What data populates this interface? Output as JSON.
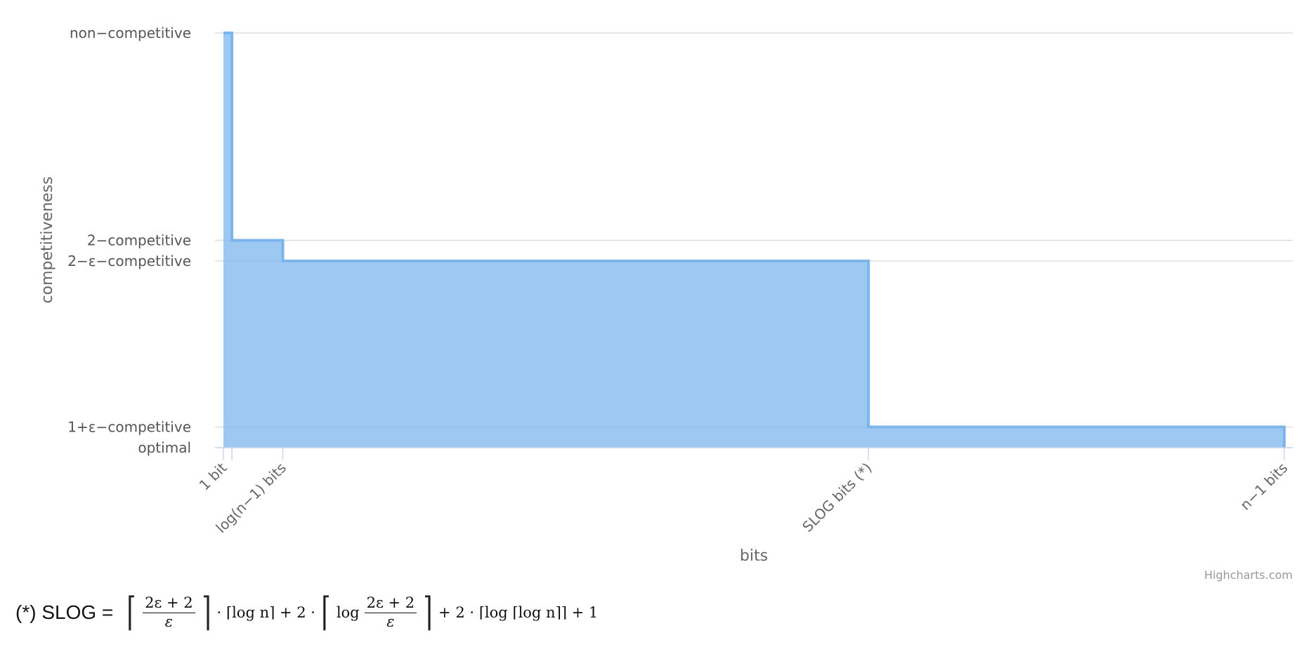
{
  "chart_data": {
    "type": "area",
    "step": true,
    "xlabel": "bits",
    "ylabel": "competitiveness",
    "x_categories": [
      "1 bit",
      "log(n−1) bits",
      "SLOG bits (*)",
      "n−1 bits"
    ],
    "y_categories": [
      "optimal",
      "1+ε−competitive",
      "2−ε−competitive",
      "2−competitive",
      "non−competitive"
    ],
    "y_levels": [
      0,
      1,
      9,
      10,
      20
    ],
    "x_positions": [
      0,
      1,
      7,
      76,
      125
    ],
    "series": [
      {
        "x": [
          0,
          1,
          7,
          76,
          125
        ],
        "y": [
          20,
          10,
          9,
          1,
          1
        ],
        "color": "#7cb5ec"
      }
    ],
    "ylim": [
      0,
      20
    ],
    "xlim": [
      0,
      126
    ],
    "grid": true
  },
  "credits": "Highcharts.com",
  "footnote": {
    "label": "(*) SLOG =",
    "formula": {
      "frac1_num": "2ε + 2",
      "frac1_den": "ε",
      "mid1": "· ⌈log n⌉ + 2 ·",
      "log_word": "log",
      "frac2_num": "2ε + 2",
      "frac2_den": "ε",
      "tail": "+ 2 · ⌈log ⌈log n⌉⌉ + 1"
    }
  }
}
